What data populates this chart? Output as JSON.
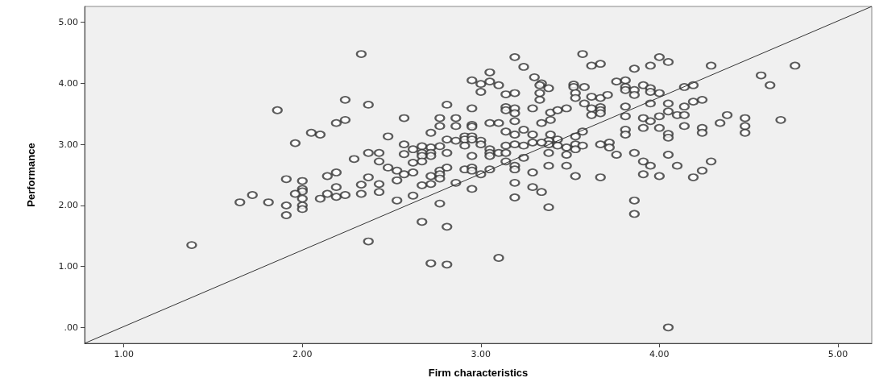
{
  "chart_data": {
    "type": "scatter",
    "xlabel": "Firm characteristics",
    "ylabel": "Performance",
    "xlim": [
      0.78,
      5.19
    ],
    "ylim": [
      -0.26,
      5.26
    ],
    "xticks": [
      {
        "value": 1,
        "label": "1.00"
      },
      {
        "value": 2,
        "label": "2.00"
      },
      {
        "value": 3,
        "label": "3.00"
      },
      {
        "value": 4,
        "label": "4.00"
      },
      {
        "value": 5,
        "label": "5.00"
      }
    ],
    "yticks": [
      {
        "value": 0,
        "label": ".00"
      },
      {
        "value": 1,
        "label": "1.00"
      },
      {
        "value": 2,
        "label": "2.00"
      },
      {
        "value": 3,
        "label": "3.00"
      },
      {
        "value": 4,
        "label": "4.00"
      },
      {
        "value": 5,
        "label": "5.00"
      }
    ],
    "grid": false,
    "marker": "circle",
    "series": [
      {
        "color": "#333333",
        "x": [
          2.33,
          2.24,
          1.86,
          2.37,
          2.24,
          2.19,
          2.05,
          2.1,
          1.96,
          2.37,
          2.29,
          2.19,
          2.14,
          1.91,
          2.0,
          2.37,
          2.33,
          2.19,
          2.0,
          2.0,
          1.96,
          2.14,
          2.33,
          1.72,
          2.19,
          2.24,
          2.1,
          2.0,
          2.0,
          2.0,
          1.91,
          1.91,
          1.65,
          1.81,
          1.38,
          2.37,
          3.19,
          3.24,
          3.57,
          3.62,
          3.67,
          3.05,
          2.95,
          3.0,
          3.05,
          3.1,
          3.3,
          3.34,
          3.38,
          3.33,
          3.0,
          3.14,
          3.19,
          3.33,
          3.33,
          3.52,
          3.52,
          3.58,
          3.53,
          3.53,
          3.58,
          3.62,
          3.67,
          3.71,
          3.76,
          2.81,
          2.95,
          3.14,
          3.14,
          3.19,
          3.19,
          3.29,
          3.39,
          3.43,
          3.48,
          3.62,
          3.62,
          3.67,
          3.67,
          3.67,
          2.57,
          2.77,
          2.86,
          2.77,
          2.86,
          2.95,
          2.95,
          3.05,
          3.1,
          3.19,
          3.34,
          3.39,
          2.48,
          2.72,
          2.81,
          2.86,
          2.91,
          2.91,
          2.91,
          2.95,
          2.95,
          3.0,
          3.0,
          3.14,
          3.19,
          3.24,
          3.29,
          3.39,
          3.43,
          3.38,
          3.38,
          3.43,
          3.57,
          3.53,
          3.14,
          3.19,
          3.24,
          3.29,
          3.34,
          3.48,
          3.53,
          3.53,
          3.57,
          3.67,
          3.72,
          3.72,
          2.57,
          2.62,
          2.67,
          2.72,
          2.77,
          2.67,
          2.72,
          2.72,
          2.81,
          2.67,
          3.05,
          3.05,
          3.1,
          3.14,
          3.05,
          2.95,
          2.43,
          2.43,
          2.57,
          2.67,
          2.62,
          3.14,
          3.24,
          3.38,
          3.48,
          3.76,
          3.38,
          3.48,
          3.19,
          3.19,
          2.48,
          2.53,
          2.57,
          2.62,
          2.72,
          2.77,
          2.77,
          2.77,
          2.81,
          2.91,
          2.95,
          2.95,
          3.0,
          3.05,
          3.29,
          3.53,
          3.67,
          2.43,
          2.53,
          2.67,
          2.72,
          2.86,
          3.19,
          3.29,
          3.34,
          2.43,
          2.53,
          2.62,
          2.95,
          3.19,
          2.77,
          3.38,
          2.67,
          2.81,
          2.72,
          2.81,
          3.1,
          4.0,
          4.05,
          3.95,
          3.86,
          4.29,
          4.76,
          4.57,
          4.62,
          3.81,
          3.81,
          3.81,
          3.86,
          3.86,
          3.91,
          3.95,
          3.95,
          4.0,
          4.14,
          4.19,
          3.81,
          3.95,
          4.05,
          4.14,
          4.19,
          4.24,
          3.81,
          3.91,
          3.95,
          4.0,
          4.05,
          4.1,
          4.14,
          4.38,
          4.34,
          4.48,
          4.68,
          3.91,
          4.0,
          4.14,
          4.24,
          4.24,
          4.48,
          4.48,
          3.81,
          3.81,
          4.05,
          4.05,
          3.86,
          4.05,
          3.91,
          3.95,
          4.1,
          4.29,
          4.24,
          4.19,
          3.91,
          4.0,
          3.86,
          3.86,
          4.05
        ],
        "values": [
          4.48,
          3.73,
          3.56,
          3.65,
          3.4,
          3.35,
          3.19,
          3.16,
          3.02,
          2.86,
          2.76,
          2.54,
          2.48,
          2.43,
          2.4,
          2.46,
          2.34,
          2.3,
          2.27,
          2.23,
          2.19,
          2.19,
          2.19,
          2.17,
          2.14,
          2.17,
          2.11,
          2.11,
          2.0,
          1.94,
          2.0,
          1.84,
          2.05,
          2.05,
          1.35,
          1.41,
          4.43,
          4.27,
          4.48,
          4.29,
          4.32,
          4.18,
          4.05,
          3.99,
          4.03,
          3.97,
          4.1,
          4.0,
          3.92,
          3.97,
          3.86,
          3.82,
          3.84,
          3.84,
          3.73,
          3.98,
          3.94,
          3.94,
          3.84,
          3.76,
          3.67,
          3.78,
          3.76,
          3.81,
          4.03,
          3.65,
          3.59,
          3.61,
          3.56,
          3.59,
          3.51,
          3.59,
          3.52,
          3.56,
          3.59,
          3.59,
          3.48,
          3.61,
          3.56,
          3.51,
          3.43,
          3.43,
          3.43,
          3.3,
          3.3,
          3.32,
          3.29,
          3.35,
          3.35,
          3.38,
          3.35,
          3.4,
          3.13,
          3.19,
          3.08,
          3.06,
          3.13,
          3.08,
          2.98,
          3.13,
          3.08,
          3.06,
          3.0,
          3.21,
          3.16,
          3.24,
          3.16,
          3.16,
          3.08,
          3.06,
          3.0,
          2.98,
          3.21,
          3.13,
          2.98,
          3.0,
          2.98,
          3.03,
          3.03,
          2.95,
          3.0,
          2.92,
          2.98,
          3.0,
          3.03,
          2.95,
          3.0,
          2.92,
          2.97,
          2.95,
          2.97,
          2.86,
          2.86,
          2.81,
          2.86,
          2.81,
          2.92,
          2.86,
          2.86,
          2.86,
          2.81,
          2.81,
          2.86,
          2.72,
          2.84,
          2.72,
          2.7,
          2.72,
          2.78,
          2.86,
          2.83,
          2.83,
          2.65,
          2.65,
          2.65,
          2.59,
          2.62,
          2.57,
          2.51,
          2.54,
          2.48,
          2.57,
          2.51,
          2.44,
          2.62,
          2.59,
          2.62,
          2.57,
          2.51,
          2.59,
          2.54,
          2.48,
          2.46,
          2.35,
          2.41,
          2.33,
          2.35,
          2.37,
          2.37,
          2.3,
          2.22,
          2.22,
          2.08,
          2.16,
          2.27,
          2.13,
          2.03,
          1.97,
          1.73,
          1.65,
          1.05,
          1.03,
          1.14,
          4.43,
          4.35,
          4.29,
          4.24,
          4.29,
          4.29,
          4.13,
          3.97,
          4.05,
          3.94,
          3.89,
          3.89,
          3.81,
          3.97,
          3.92,
          3.86,
          3.84,
          3.94,
          3.97,
          3.62,
          3.67,
          3.67,
          3.62,
          3.7,
          3.73,
          3.46,
          3.43,
          3.38,
          3.46,
          3.54,
          3.48,
          3.48,
          3.48,
          3.35,
          3.43,
          3.4,
          3.27,
          3.27,
          3.3,
          3.27,
          3.19,
          3.3,
          3.19,
          3.24,
          3.16,
          3.17,
          3.11,
          2.86,
          2.83,
          2.72,
          2.65,
          2.65,
          2.72,
          2.57,
          2.46,
          2.51,
          2.48,
          2.08,
          1.86,
          0.0
        ]
      },
      {
        "type": "line",
        "color": "#333333",
        "marker": "none",
        "x": [
          0.78,
          5.19
        ],
        "values": [
          -0.26,
          5.26
        ]
      }
    ]
  }
}
